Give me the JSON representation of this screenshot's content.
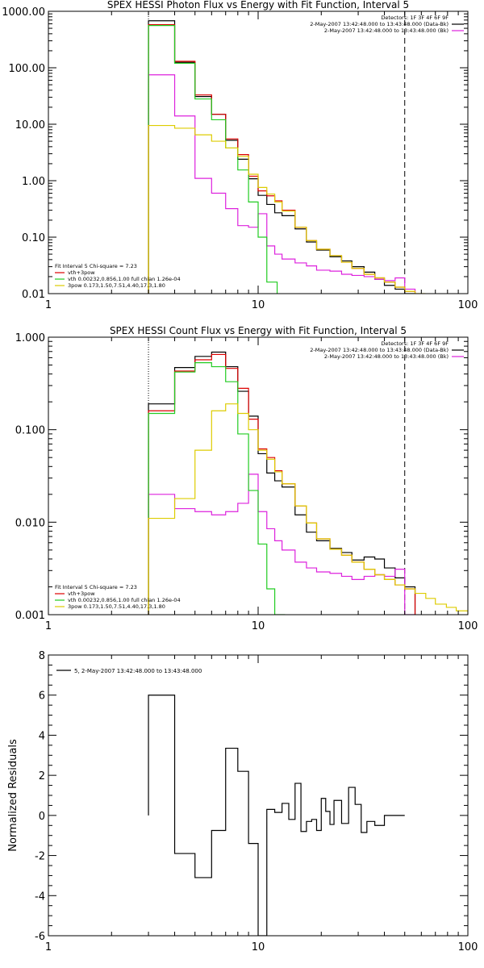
{
  "chart_data": [
    {
      "type": "line",
      "title": "SPEX HESSI Photon Flux vs Energy with Fit Function, Interval 5",
      "xscale": "log",
      "yscale": "log",
      "xlim": [
        1,
        100
      ],
      "ylim": [
        0.01,
        1000
      ],
      "xticks": [
        "1",
        "10",
        "100"
      ],
      "yticks": [
        "0.01",
        "0.10",
        "1.00",
        "10.00",
        "100.00",
        "1000.00"
      ],
      "info_lines": [
        "Detectors: 1F 3F 4F 6F 9F",
        "2-May-2007 13:42:48.000 to 13:43:48.000 (Data-Bk)",
        "2-May-2007 13:42:48.000 to 13:43:48.000 (Bk)"
      ],
      "fit_label": "Fit Interval 5   Chi-square = 7.23",
      "fit_lines": [
        "vth+3pow",
        "vth 0.00232,0.856,1.00   full chian 1.26e-04",
        "3pow 0.173,1.50,7.51,4.40,17.3,1.80"
      ],
      "vlines": [
        3,
        50
      ],
      "series": [
        {
          "name": "(Data-Bk)",
          "color": "#000000",
          "x": [
            3,
            4,
            5,
            6,
            7,
            8,
            9,
            10,
            11,
            12,
            13,
            15,
            17,
            19,
            22,
            25,
            28,
            32,
            36,
            40,
            45,
            50
          ],
          "y": [
            680,
            125,
            31,
            15,
            5.2,
            2.4,
            1.08,
            0.55,
            0.38,
            0.27,
            0.24,
            0.14,
            0.082,
            0.059,
            0.045,
            0.038,
            0.03,
            0.024,
            0.018,
            0.014,
            0.012,
            0.01
          ]
        },
        {
          "name": "Bk",
          "color": "#dd22dd",
          "x": [
            3,
            4,
            5,
            6,
            7,
            8,
            9,
            10,
            11,
            12,
            13,
            15,
            17,
            19,
            22,
            25,
            28,
            32,
            36,
            40,
            45,
            50
          ],
          "y": [
            75,
            14,
            1.1,
            0.6,
            0.32,
            0.16,
            0.15,
            0.26,
            0.07,
            0.05,
            0.041,
            0.035,
            0.031,
            0.026,
            0.025,
            0.022,
            0.021,
            0.02,
            0.018,
            0.017,
            0.019,
            0.012
          ]
        },
        {
          "name": "vth+3pow",
          "color": "#dd0000",
          "x": [
            3,
            4,
            5,
            6,
            7,
            8,
            9,
            10,
            11,
            12,
            13,
            15,
            17,
            19,
            22,
            25,
            28,
            32,
            36,
            40,
            45,
            50
          ],
          "y": [
            580,
            130,
            33,
            15,
            5.5,
            2.9,
            1.2,
            0.66,
            0.54,
            0.44,
            0.3,
            0.15,
            0.087,
            0.061,
            0.047,
            0.036,
            0.028,
            0.022,
            0.019,
            0.016,
            0.013,
            0.011
          ]
        },
        {
          "name": "vth",
          "color": "#22cc22",
          "x": [
            3,
            4,
            5,
            6,
            7,
            8,
            9,
            10,
            11
          ],
          "y": [
            560,
            120,
            28,
            12,
            3.8,
            1.55,
            0.42,
            0.1,
            0.016
          ]
        },
        {
          "name": "3pow",
          "color": "#ddcc00",
          "x": [
            3,
            4,
            5,
            6,
            7,
            8,
            9,
            10,
            11,
            12,
            13,
            15,
            17,
            19,
            22,
            25,
            28,
            32,
            36,
            40,
            45,
            50,
            56
          ],
          "y": [
            9.5,
            8.5,
            6.5,
            5.0,
            3.8,
            2.7,
            1.3,
            0.76,
            0.58,
            0.42,
            0.29,
            0.15,
            0.087,
            0.061,
            0.047,
            0.036,
            0.028,
            0.022,
            0.019,
            0.016,
            0.013,
            0.011,
            0.01
          ]
        }
      ]
    },
    {
      "type": "line",
      "title": "SPEX HESSI Count Flux vs Energy with Fit Function, Interval 5",
      "xscale": "log",
      "yscale": "log",
      "xlim": [
        1,
        100
      ],
      "ylim": [
        0.001,
        1
      ],
      "xticks": [
        "1",
        "10",
        "100"
      ],
      "yticks": [
        "0.001",
        "0.010",
        "0.100",
        "1.000"
      ],
      "info_lines": [
        "Detectors: 1F 3F 4F 6F 9F",
        "2-May-2007 13:42:48.000 to 13:43:48.000 (Data-Bk)",
        "2-May-2007 13:42:48.000 to 13:43:48.000 (Bk)"
      ],
      "fit_label": "Fit Interval 5   Chi-square = 7.23",
      "fit_lines": [
        "vth+3pow",
        "vth 0.00232,0.856,1.00   full chian 1.26e-04",
        "3pow 0.173,1.50,7.51,4.40,17.3,1.80"
      ],
      "vlines": [
        3,
        50
      ],
      "series": [
        {
          "name": "(Data-Bk)",
          "color": "#000000",
          "x": [
            3,
            4,
            5,
            6,
            7,
            8,
            9,
            10,
            11,
            12,
            13,
            15,
            17,
            19,
            22,
            25,
            28,
            32,
            36,
            40,
            45,
            50
          ],
          "y": [
            0.19,
            0.47,
            0.62,
            0.69,
            0.48,
            0.26,
            0.14,
            0.055,
            0.034,
            0.028,
            0.024,
            0.012,
            0.0078,
            0.0063,
            0.0052,
            0.0047,
            0.0039,
            0.0042,
            0.004,
            0.0032,
            0.0025,
            0.002
          ]
        },
        {
          "name": "Bk",
          "color": "#dd22dd",
          "x": [
            3,
            4,
            5,
            6,
            7,
            8,
            9,
            10,
            11,
            12,
            13,
            15,
            17,
            19,
            22,
            25,
            28,
            32,
            36,
            40,
            45,
            50
          ],
          "y": [
            0.02,
            0.014,
            0.013,
            0.012,
            0.013,
            0.016,
            0.033,
            0.013,
            0.0085,
            0.0063,
            0.005,
            0.0037,
            0.0032,
            0.0029,
            0.0028,
            0.0026,
            0.0024,
            0.0026,
            0.0027,
            0.0026,
            0.0031,
            0.001
          ]
        },
        {
          "name": "vth+3pow",
          "color": "#dd0000",
          "x": [
            3,
            4,
            5,
            6,
            7,
            8,
            9,
            10,
            11,
            12,
            13,
            15,
            17,
            19,
            22,
            25,
            28,
            32,
            36,
            40,
            45,
            50
          ],
          "y": [
            0.16,
            0.43,
            0.57,
            0.65,
            0.46,
            0.28,
            0.13,
            0.062,
            0.05,
            0.036,
            0.026,
            0.015,
            0.0098,
            0.0066,
            0.0051,
            0.0044,
            0.0037,
            0.0031,
            0.0027,
            0.0024,
            0.0021,
            0.0019
          ]
        },
        {
          "name": "vth",
          "color": "#22cc22",
          "x": [
            3,
            4,
            5,
            6,
            7,
            8,
            9,
            10,
            11,
            12
          ],
          "y": [
            0.15,
            0.42,
            0.53,
            0.48,
            0.33,
            0.09,
            0.022,
            0.0058,
            0.0019,
            0.001
          ]
        },
        {
          "name": "3pow",
          "color": "#ddcc00",
          "x": [
            3,
            4,
            5,
            6,
            7,
            8,
            9,
            10,
            11,
            12,
            13,
            15,
            17,
            19,
            22,
            25,
            28,
            32,
            36,
            40,
            45,
            50,
            56,
            63,
            70,
            79,
            88,
            100
          ],
          "y": [
            0.011,
            0.018,
            0.06,
            0.16,
            0.19,
            0.15,
            0.1,
            0.06,
            0.048,
            0.035,
            0.026,
            0.015,
            0.0098,
            0.0066,
            0.0051,
            0.0044,
            0.0037,
            0.0031,
            0.0027,
            0.0024,
            0.0021,
            0.0019,
            0.0017,
            0.0015,
            0.0013,
            0.0012,
            0.0011,
            0.001
          ]
        }
      ]
    },
    {
      "type": "line",
      "title": "",
      "xscale": "log",
      "yscale": "linear",
      "xlim": [
        1,
        100
      ],
      "ylim": [
        -6,
        8
      ],
      "xticks": [
        "1",
        "10",
        "100"
      ],
      "yticks": [
        "-6",
        "-4",
        "-2",
        "0",
        "2",
        "4",
        "6",
        "8"
      ],
      "ylabel": "Normalized Residuals",
      "legend": "5, 2-May-2007 13:42:48.000 to 13:43:48.000",
      "series": [
        {
          "name": "5, 2-May-2007 13:42:48.000 to 13:43:48.000",
          "color": "#000000",
          "edges": [
            3,
            4,
            5,
            6,
            7,
            8,
            9,
            10,
            11,
            12,
            13,
            14,
            15,
            16,
            17,
            18,
            19,
            20,
            21,
            22,
            23,
            25,
            27,
            29,
            31,
            33,
            36,
            40,
            43,
            46,
            50
          ],
          "values": [
            6,
            -1.9,
            -3.1,
            -0.75,
            3.35,
            2.2,
            -1.4,
            -6,
            0.3,
            0.15,
            0.6,
            -0.2,
            1.6,
            -0.8,
            -0.3,
            -0.2,
            -0.75,
            0.85,
            0.2,
            -0.45,
            0.75,
            -0.4,
            1.4,
            0.55,
            -0.85,
            -0.3,
            -0.5,
            0,
            0,
            0
          ]
        }
      ]
    }
  ]
}
